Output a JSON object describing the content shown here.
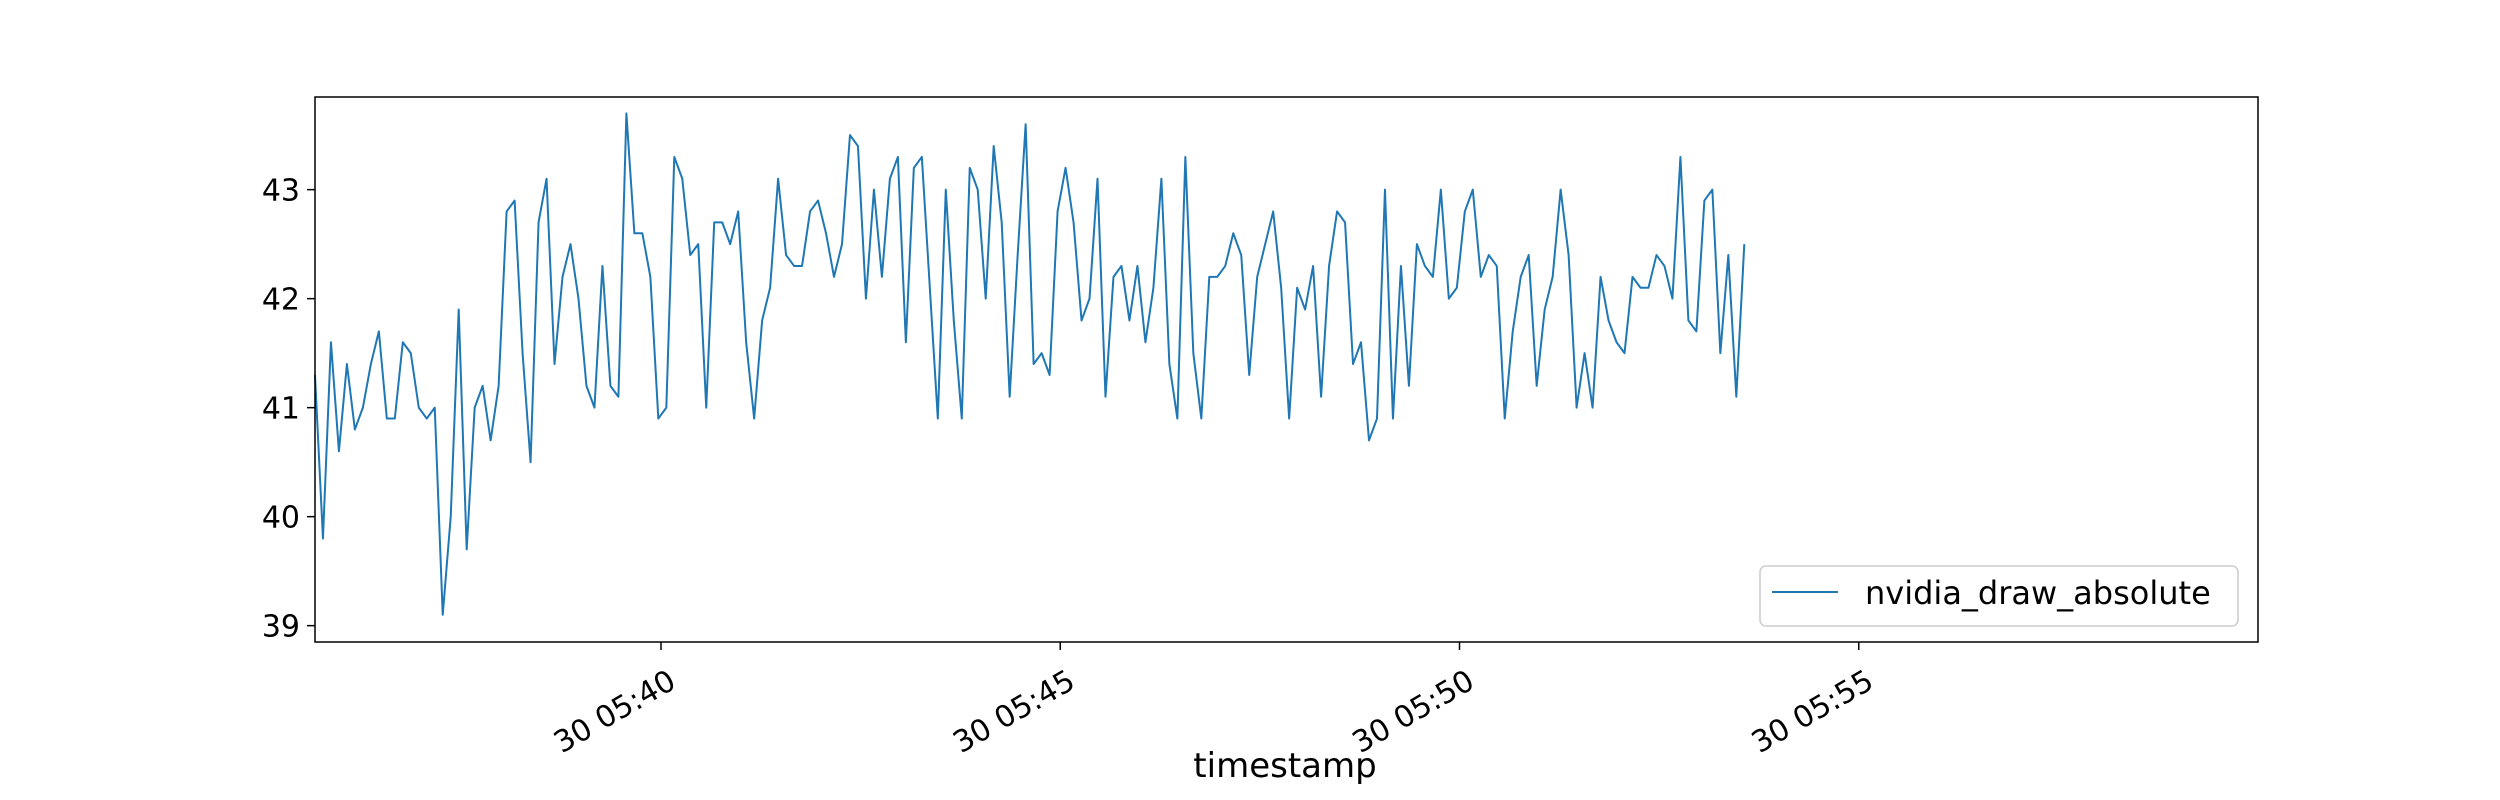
{
  "chart_data": {
    "type": "line",
    "title": "",
    "xlabel": "timestamp",
    "ylabel": "",
    "x_start": "30 05:35:40",
    "x_step_seconds": 6,
    "x_tick_labels": [
      "30 05:40",
      "30 05:45",
      "30 05:50",
      "30 05:55"
    ],
    "x_tick_minutes": [
      40,
      45,
      50,
      55
    ],
    "xlim_minutes": [
      35.667,
      60.0
    ],
    "y_ticks": [
      39,
      40,
      41,
      42,
      43
    ],
    "ylim": [
      38.85,
      43.85
    ],
    "grid": false,
    "legend_position": "lower-right",
    "series": [
      {
        "name": "nvidia_draw_absolute",
        "color": "#1f77b4",
        "values": [
          41.3,
          39.8,
          41.6,
          40.6,
          41.4,
          40.8,
          41.0,
          41.4,
          41.7,
          40.9,
          40.9,
          41.6,
          41.5,
          41.0,
          40.9,
          41.0,
          39.1,
          40.0,
          41.9,
          39.7,
          41.0,
          41.2,
          40.7,
          41.2,
          42.8,
          42.9,
          41.5,
          40.5,
          42.7,
          43.1,
          41.4,
          42.2,
          42.5,
          42.0,
          41.2,
          41.0,
          42.3,
          41.2,
          41.1,
          43.7,
          42.6,
          42.6,
          42.2,
          40.9,
          41.0,
          43.3,
          43.1,
          42.4,
          42.5,
          41.0,
          42.7,
          42.7,
          42.5,
          42.8,
          41.6,
          40.9,
          41.8,
          42.1,
          43.1,
          42.4,
          42.3,
          42.3,
          42.8,
          42.9,
          42.6,
          42.2,
          42.5,
          43.5,
          43.4,
          42.0,
          43.0,
          42.2,
          43.1,
          43.3,
          41.6,
          43.2,
          43.3,
          42.1,
          40.9,
          43.0,
          41.8,
          40.9,
          43.2,
          43.0,
          42.0,
          43.4,
          42.7,
          41.1,
          42.4,
          43.6,
          41.4,
          41.5,
          41.3,
          42.8,
          43.2,
          42.7,
          41.8,
          42.0,
          43.1,
          41.1,
          42.2,
          42.3,
          41.8,
          42.3,
          41.6,
          42.1,
          43.1,
          41.4,
          40.9,
          43.3,
          41.5,
          40.9,
          42.2,
          42.2,
          42.3,
          42.6,
          42.4,
          41.3,
          42.2,
          42.5,
          42.8,
          42.1,
          40.9,
          42.1,
          41.9,
          42.3,
          41.1,
          42.3,
          42.8,
          42.7,
          41.4,
          41.6,
          40.7,
          40.9,
          43.0,
          40.9,
          42.3,
          41.2,
          42.5,
          42.3,
          42.2,
          43.0,
          42.0,
          42.1,
          42.8,
          43.0,
          42.2,
          42.4,
          42.3,
          40.9,
          41.7,
          42.2,
          42.4,
          41.2,
          41.9,
          42.2,
          43.0,
          42.4,
          41.0,
          41.5,
          41.0,
          42.2,
          41.8,
          41.6,
          41.5,
          42.2,
          42.1,
          42.1,
          42.4,
          42.3,
          42.0,
          43.3,
          41.8,
          41.7,
          42.9,
          43.0,
          41.5,
          42.4,
          41.1,
          42.5
        ]
      }
    ]
  }
}
